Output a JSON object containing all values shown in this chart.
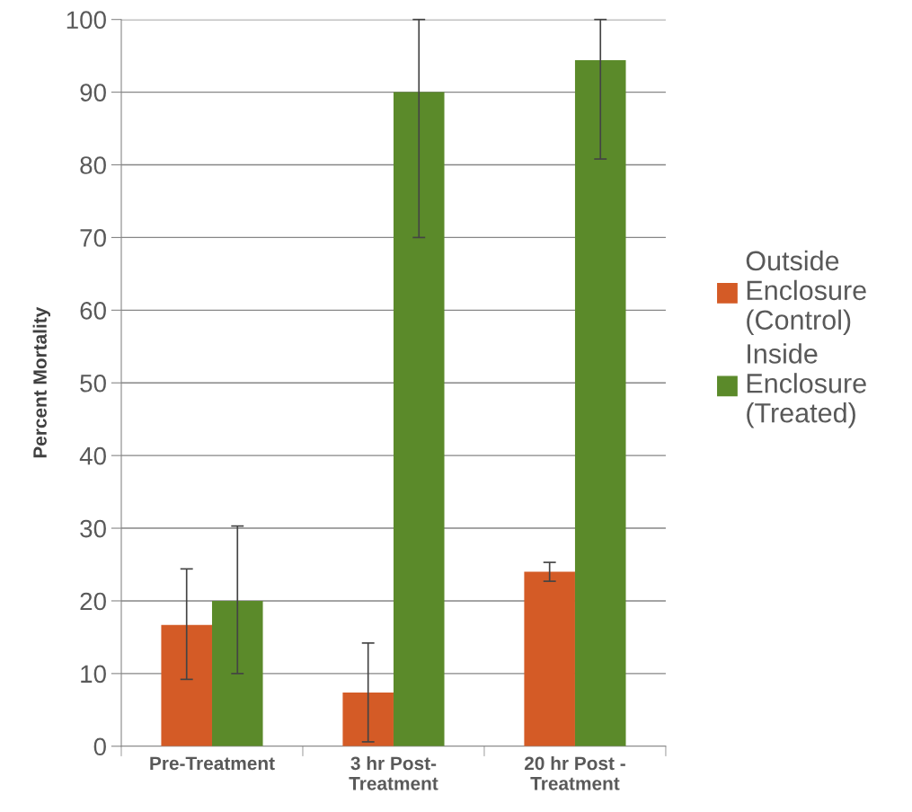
{
  "chart_data": {
    "type": "bar",
    "ylabel": "Percent Mortality",
    "categories": [
      "Pre-Treatment",
      "3 hr Post-\nTreatment",
      "20 hr Post -\nTreatment"
    ],
    "series": [
      {
        "name": "Outside\nEnclosure\n(Control)",
        "color": "#d45b26",
        "values": [
          16.7,
          7.4,
          24.0
        ],
        "errors": [
          [
            9.2,
            24.4
          ],
          [
            0.6,
            14.2
          ],
          [
            22.7,
            25.3
          ]
        ]
      },
      {
        "name": "Inside\nEnclosure\n(Treated)",
        "color": "#5b8a2a",
        "values": [
          20.0,
          90.0,
          94.4
        ],
        "errors": [
          [
            10.0,
            30.3
          ],
          [
            70.0,
            100
          ],
          [
            80.8,
            100
          ]
        ]
      }
    ],
    "ylim": [
      0,
      100
    ],
    "yticks": [
      0,
      10,
      20,
      30,
      40,
      50,
      60,
      70,
      80,
      90,
      100
    ],
    "grid": "y",
    "legend": "right"
  }
}
